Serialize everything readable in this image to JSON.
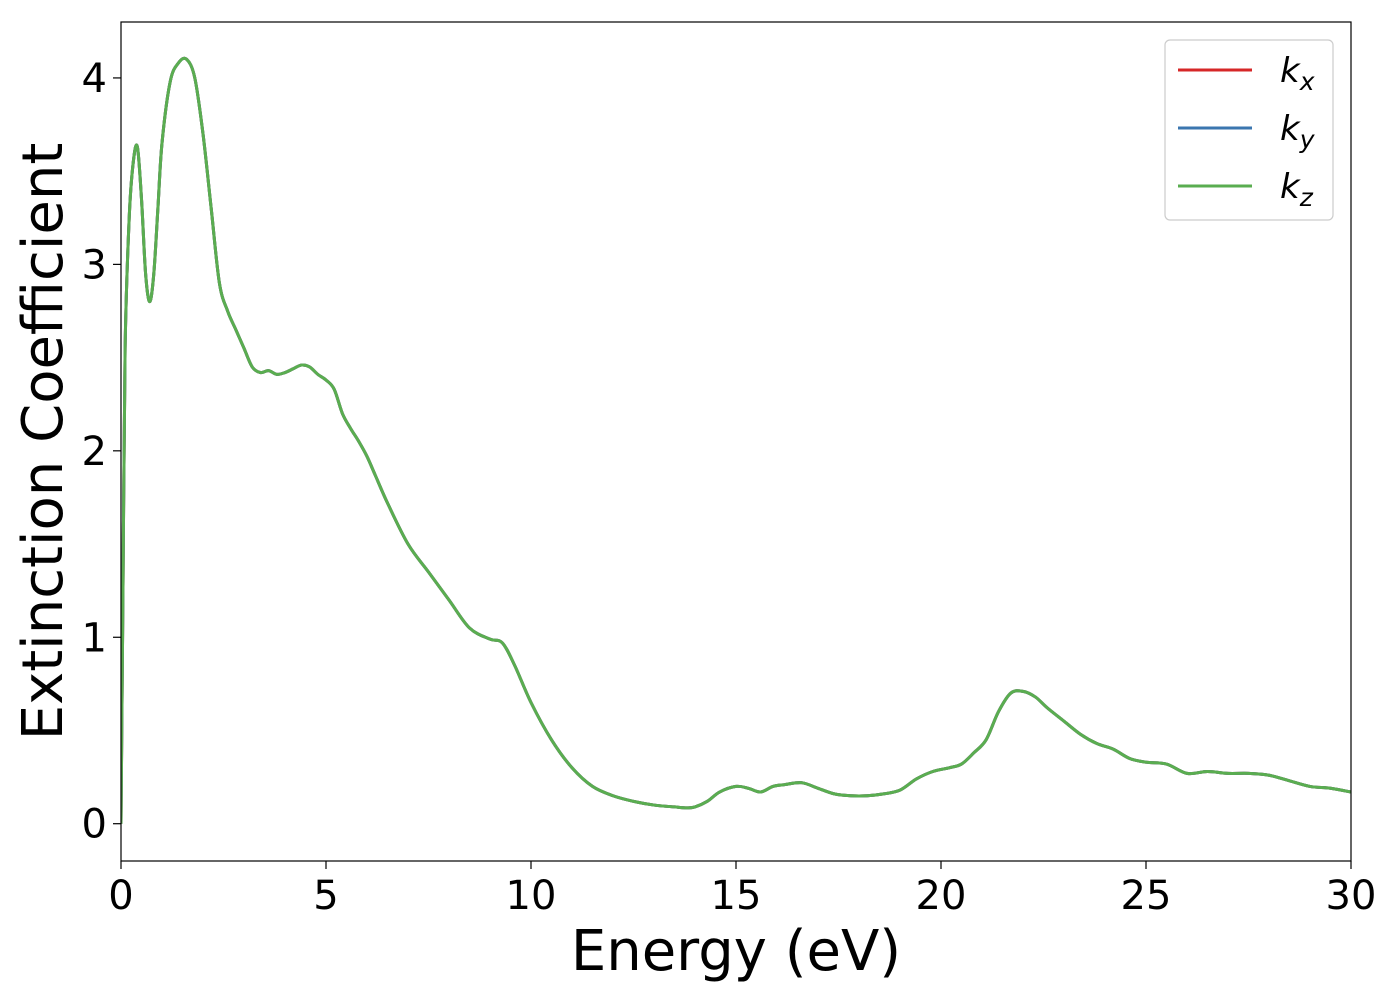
{
  "chart_data": {
    "type": "line",
    "xlabel": "Energy (eV)",
    "ylabel": "Extinction Coefficient",
    "xlim": [
      0,
      30
    ],
    "ylim": [
      -0.2,
      4.3
    ],
    "xticks": [
      0,
      5,
      10,
      15,
      20,
      25,
      30
    ],
    "yticks": [
      0,
      1,
      2,
      3,
      4
    ],
    "grid": false,
    "legend_position": "top-right",
    "x": [
      0,
      0.05,
      0.1,
      0.2,
      0.3,
      0.4,
      0.5,
      0.6,
      0.7,
      0.8,
      0.9,
      1.0,
      1.2,
      1.4,
      1.6,
      1.8,
      2.0,
      2.2,
      2.4,
      2.6,
      2.8,
      3.0,
      3.2,
      3.4,
      3.6,
      3.8,
      4.0,
      4.2,
      4.4,
      4.6,
      4.8,
      5.0,
      5.2,
      5.4,
      5.6,
      5.8,
      6.0,
      6.2,
      6.5,
      7.0,
      7.5,
      8.0,
      8.5,
      9.0,
      9.3,
      9.6,
      10.0,
      10.5,
      11.0,
      11.5,
      12.0,
      12.5,
      13.0,
      13.5,
      13.8,
      14.0,
      14.3,
      14.6,
      15.0,
      15.3,
      15.6,
      15.9,
      16.2,
      16.6,
      17.0,
      17.4,
      17.8,
      18.2,
      18.6,
      19.0,
      19.4,
      19.8,
      20.2,
      20.5,
      20.8,
      21.1,
      21.4,
      21.7,
      22.0,
      22.3,
      22.6,
      23.0,
      23.4,
      23.8,
      24.2,
      24.6,
      25.0,
      25.5,
      26.0,
      26.5,
      27.0,
      27.5,
      28.0,
      28.5,
      29.0,
      29.5,
      30.0
    ],
    "series": [
      {
        "name": "kx",
        "symbol": "k",
        "subscript": "x",
        "color": "#d62728",
        "y": [
          0.0,
          1.3,
          2.55,
          3.25,
          3.55,
          3.63,
          3.35,
          2.95,
          2.8,
          2.95,
          3.3,
          3.65,
          3.98,
          4.08,
          4.1,
          4.0,
          3.7,
          3.3,
          2.9,
          2.75,
          2.65,
          2.55,
          2.45,
          2.42,
          2.43,
          2.41,
          2.42,
          2.44,
          2.46,
          2.45,
          2.41,
          2.38,
          2.33,
          2.2,
          2.12,
          2.05,
          1.97,
          1.87,
          1.72,
          1.5,
          1.35,
          1.2,
          1.05,
          0.99,
          0.97,
          0.85,
          0.65,
          0.45,
          0.3,
          0.2,
          0.15,
          0.12,
          0.1,
          0.09,
          0.085,
          0.09,
          0.12,
          0.17,
          0.2,
          0.19,
          0.17,
          0.2,
          0.21,
          0.22,
          0.19,
          0.16,
          0.15,
          0.15,
          0.16,
          0.18,
          0.24,
          0.28,
          0.3,
          0.32,
          0.38,
          0.45,
          0.6,
          0.7,
          0.71,
          0.68,
          0.62,
          0.55,
          0.48,
          0.43,
          0.4,
          0.35,
          0.33,
          0.32,
          0.27,
          0.28,
          0.27,
          0.27,
          0.26,
          0.23,
          0.2,
          0.19,
          0.17
        ]
      },
      {
        "name": "ky",
        "symbol": "k",
        "subscript": "y",
        "color": "#3b76af",
        "y": [
          0.0,
          1.3,
          2.55,
          3.25,
          3.55,
          3.63,
          3.35,
          2.95,
          2.8,
          2.95,
          3.3,
          3.65,
          3.98,
          4.08,
          4.1,
          4.0,
          3.7,
          3.3,
          2.9,
          2.75,
          2.65,
          2.55,
          2.45,
          2.42,
          2.43,
          2.41,
          2.42,
          2.44,
          2.46,
          2.45,
          2.41,
          2.38,
          2.33,
          2.2,
          2.12,
          2.05,
          1.97,
          1.87,
          1.72,
          1.5,
          1.35,
          1.2,
          1.05,
          0.99,
          0.97,
          0.85,
          0.65,
          0.45,
          0.3,
          0.2,
          0.15,
          0.12,
          0.1,
          0.09,
          0.085,
          0.09,
          0.12,
          0.17,
          0.2,
          0.19,
          0.17,
          0.2,
          0.21,
          0.22,
          0.19,
          0.16,
          0.15,
          0.15,
          0.16,
          0.18,
          0.24,
          0.28,
          0.3,
          0.32,
          0.38,
          0.45,
          0.6,
          0.7,
          0.71,
          0.68,
          0.62,
          0.55,
          0.48,
          0.43,
          0.4,
          0.35,
          0.33,
          0.32,
          0.27,
          0.28,
          0.27,
          0.27,
          0.26,
          0.23,
          0.2,
          0.19,
          0.17
        ]
      },
      {
        "name": "kz",
        "symbol": "k",
        "subscript": "z",
        "color": "#5aad50",
        "y": [
          0.0,
          1.3,
          2.55,
          3.25,
          3.55,
          3.63,
          3.35,
          2.95,
          2.8,
          2.95,
          3.3,
          3.65,
          3.98,
          4.08,
          4.1,
          4.0,
          3.7,
          3.3,
          2.9,
          2.75,
          2.65,
          2.55,
          2.45,
          2.42,
          2.43,
          2.41,
          2.42,
          2.44,
          2.46,
          2.45,
          2.41,
          2.38,
          2.33,
          2.2,
          2.12,
          2.05,
          1.97,
          1.87,
          1.72,
          1.5,
          1.35,
          1.2,
          1.05,
          0.99,
          0.97,
          0.85,
          0.65,
          0.45,
          0.3,
          0.2,
          0.15,
          0.12,
          0.1,
          0.09,
          0.085,
          0.09,
          0.12,
          0.17,
          0.2,
          0.19,
          0.17,
          0.2,
          0.21,
          0.22,
          0.19,
          0.16,
          0.15,
          0.15,
          0.16,
          0.18,
          0.24,
          0.28,
          0.3,
          0.32,
          0.38,
          0.45,
          0.6,
          0.7,
          0.71,
          0.68,
          0.62,
          0.55,
          0.48,
          0.43,
          0.4,
          0.35,
          0.33,
          0.32,
          0.27,
          0.28,
          0.27,
          0.27,
          0.26,
          0.23,
          0.2,
          0.19,
          0.17
        ]
      }
    ]
  }
}
